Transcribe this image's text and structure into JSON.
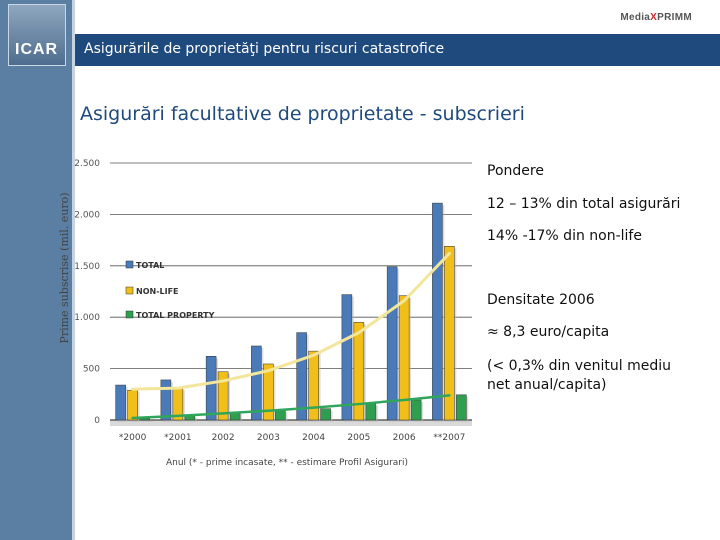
{
  "header": {
    "logo_text": "ICAR",
    "title": "Asigurările de proprietăţi pentru riscuri catastrofice",
    "brand_prefix": "Media",
    "brand_x": "X",
    "brand_suffix": "PRIMM"
  },
  "slide": {
    "title": "Asigurări facultative de proprietate - subscrieri"
  },
  "notes": {
    "pondere_title": "Pondere",
    "pondere_line1": "12 – 13% din total asigurări",
    "pondere_line2": "14% -17%  din non-life",
    "densitate_title": "Densitate 2006",
    "densitate_approx": "≈  8,3 euro/capita",
    "densitate_line1": "(< 0,3% din venitul mediu",
    "densitate_line2": "net anual/capita)"
  },
  "colors": {
    "header": "#1f4a7d",
    "sidebar": "#5b7fa3",
    "total": "#4a7ab8",
    "nonlife": "#f0bf1a",
    "property": "#2f9e4f",
    "trend_nonlife": "#f3e59a",
    "trend_property": "#2fa65b"
  },
  "chart_data": {
    "type": "bar",
    "ylabel": "Prime subscrise (mil. euro)",
    "xlabel": "Anul (* - prime incasate, ** - estimare Profil Asigurari)",
    "ylim": [
      0,
      2500
    ],
    "yticks": [
      0,
      500,
      1000,
      1500,
      2000,
      2500
    ],
    "ytick_labels": [
      "0",
      "500",
      "1.000",
      "1.500",
      "2.000",
      "2.500"
    ],
    "categories": [
      "*2000",
      "*2001",
      "2002",
      "2003",
      "2004",
      "2005",
      "2006",
      "**2007"
    ],
    "series": [
      {
        "name": "TOTAL",
        "values": [
          340,
          390,
          620,
          720,
          850,
          1220,
          1490,
          2110
        ]
      },
      {
        "name": "NON-LIFE",
        "values": [
          290,
          310,
          470,
          545,
          670,
          950,
          1210,
          1690
        ]
      },
      {
        "name": "TOTAL PROPERTY",
        "values": [
          15,
          40,
          75,
          95,
          110,
          160,
          195,
          245
        ]
      }
    ],
    "trendlines": [
      {
        "name": "NON-LIFE trend",
        "values": [
          300,
          310,
          380,
          480,
          630,
          850,
          1160,
          1620
        ]
      },
      {
        "name": "TOTAL PROPERTY trend",
        "values": [
          20,
          40,
          65,
          90,
          120,
          155,
          195,
          240
        ]
      }
    ],
    "legend": [
      "TOTAL",
      "NON-LIFE",
      "TOTAL PROPERTY"
    ],
    "legend_position": "left-middle",
    "grid": true
  }
}
